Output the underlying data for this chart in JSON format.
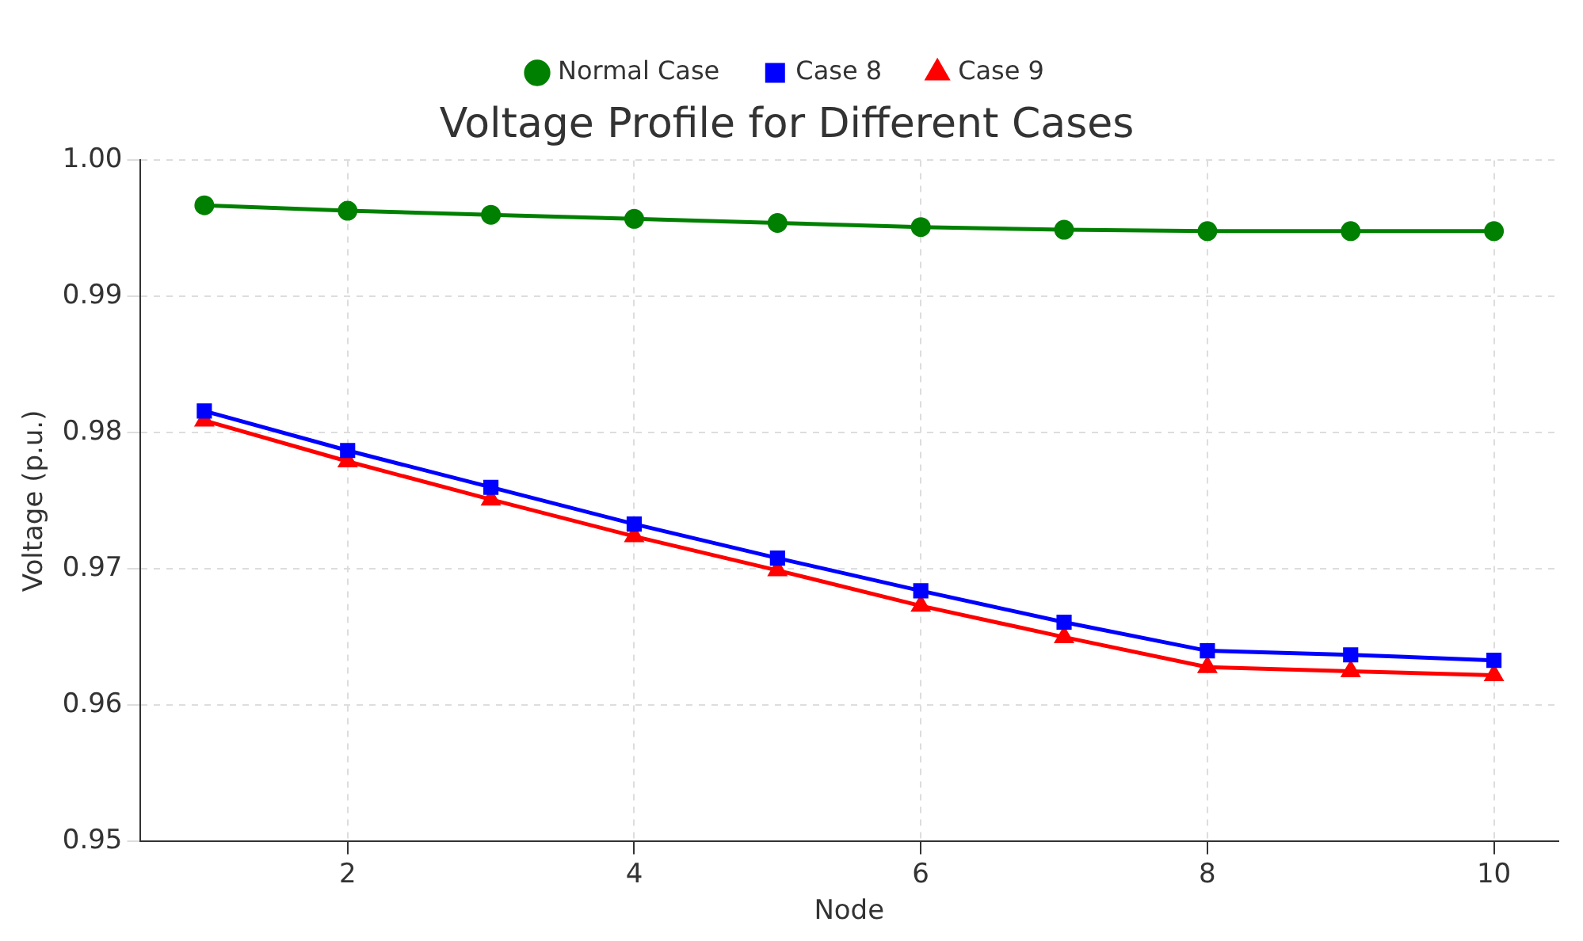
{
  "chart_data": {
    "type": "line",
    "title": "Voltage Profile for Different Cases",
    "xlabel": "Node",
    "ylabel": "Voltage (p.u.)",
    "x": [
      1,
      2,
      3,
      4,
      5,
      6,
      7,
      8,
      9,
      10
    ],
    "series": [
      {
        "name": "Normal Case",
        "color": "#008000",
        "marker": "circle",
        "values": [
          0.9967,
          0.9963,
          0.996,
          0.9957,
          0.9954,
          0.9951,
          0.9949,
          0.9948,
          0.9948,
          0.9948
        ]
      },
      {
        "name": "Case 8",
        "color": "#0000ff",
        "marker": "square",
        "values": [
          0.9816,
          0.9787,
          0.976,
          0.9733,
          0.9708,
          0.9684,
          0.9661,
          0.964,
          0.9637,
          0.9633
        ]
      },
      {
        "name": "Case 9",
        "color": "#ff0000",
        "marker": "triangle",
        "values": [
          0.9809,
          0.9779,
          0.9751,
          0.9724,
          0.9699,
          0.9673,
          0.965,
          0.9628,
          0.9625,
          0.9622
        ]
      }
    ],
    "xlim": [
      0.55,
      10.45
    ],
    "xticks": [
      2,
      4,
      6,
      8,
      10
    ],
    "ylim": [
      0.95,
      1.0
    ],
    "yticks": [
      0.95,
      0.96,
      0.97,
      0.98,
      0.99,
      {
        "value": 1.0,
        "label": "1.00"
      }
    ],
    "grid": true,
    "legend": "top",
    "line_style": "solid"
  }
}
